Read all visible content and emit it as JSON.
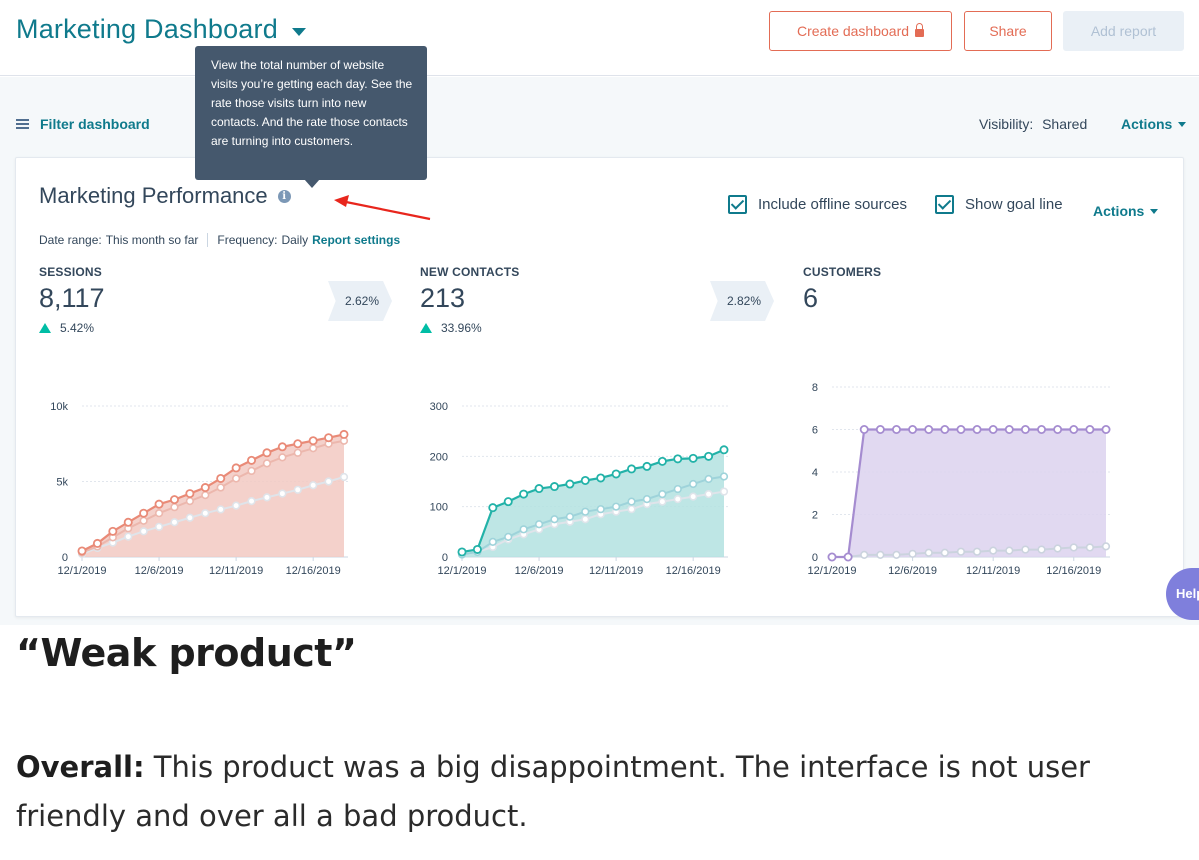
{
  "header": {
    "title": "Marketing Dashboard",
    "buttons": {
      "create": "Create dashboard",
      "share": "Share",
      "add_report": "Add report"
    }
  },
  "toolbar": {
    "filter_label": "Filter dashboard",
    "visibility_label": "Visibility:",
    "visibility_value": "Shared",
    "actions_label": "Actions"
  },
  "tooltip": {
    "text": "View the total number of website visits you’re getting each day. See the rate those visits turn into new contacts. And the rate those contacts are turning into customers."
  },
  "report": {
    "title": "Marketing Performance",
    "date_range_label": "Date range:",
    "date_range_value": "This month so far",
    "frequency_label": "Frequency:",
    "frequency_value": "Daily",
    "settings_link": "Report settings",
    "include_offline": "Include offline sources",
    "show_goal": "Show goal line",
    "actions_label": "Actions",
    "metrics": [
      {
        "label": "SESSIONS",
        "value": "8,117",
        "change": "5.42%"
      },
      {
        "label": "NEW CONTACTS",
        "value": "213",
        "change": "33.96%"
      },
      {
        "label": "CUSTOMERS",
        "value": "6",
        "change": ""
      }
    ],
    "rates": [
      "2.62%",
      "2.82%"
    ]
  },
  "colors": {
    "teal": "#0f7a8c",
    "coral": "#e36c55",
    "sessions_line": "#e98a77",
    "sessions_fill": "#f2c9c2",
    "contacts_line": "#22b2a8",
    "contacts_fill": "#b3e2e0",
    "customers_line": "#a58cd0",
    "customers_fill": "#dcd2ef",
    "goal_line": "#cbd3de"
  },
  "chart_data": [
    {
      "type": "area",
      "title": "",
      "x": [
        "12/1/2019",
        "12/2/2019",
        "12/3/2019",
        "12/4/2019",
        "12/5/2019",
        "12/6/2019",
        "12/7/2019",
        "12/8/2019",
        "12/9/2019",
        "12/10/2019",
        "12/11/2019",
        "12/12/2019",
        "12/13/2019",
        "12/14/2019",
        "12/15/2019",
        "12/16/2019",
        "12/17/2019",
        "12/18/2019"
      ],
      "x_ticks": [
        "12/1/2019",
        "12/6/2019",
        "12/11/2019",
        "12/16/2019"
      ],
      "y_ticks": [
        "0",
        "5k",
        "10k"
      ],
      "ylim": [
        0,
        10000
      ],
      "series": [
        {
          "values": [
            400,
            900,
            1700,
            2300,
            2900,
            3500,
            3800,
            4200,
            4600,
            5200,
            5900,
            6400,
            6900,
            7300,
            7500,
            7700,
            7900,
            8117
          ]
        },
        {
          "values": [
            300,
            700,
            1300,
            1900,
            2400,
            2900,
            3300,
            3700,
            4100,
            4600,
            5200,
            5700,
            6200,
            6600,
            6900,
            7200,
            7500,
            7700
          ]
        },
        {
          "values": [
            200,
            600,
            950,
            1350,
            1700,
            2000,
            2300,
            2600,
            2900,
            3150,
            3400,
            3700,
            3950,
            4200,
            4450,
            4750,
            5000,
            5300
          ]
        }
      ]
    },
    {
      "type": "area",
      "title": "",
      "x": [
        "12/1/2019",
        "12/2/2019",
        "12/3/2019",
        "12/4/2019",
        "12/5/2019",
        "12/6/2019",
        "12/7/2019",
        "12/8/2019",
        "12/9/2019",
        "12/10/2019",
        "12/11/2019",
        "12/12/2019",
        "12/13/2019",
        "12/14/2019",
        "12/15/2019",
        "12/16/2019",
        "12/17/2019",
        "12/18/2019"
      ],
      "x_ticks": [
        "12/1/2019",
        "12/6/2019",
        "12/11/2019",
        "12/16/2019"
      ],
      "y_ticks": [
        "0",
        "100",
        "200",
        "300"
      ],
      "ylim": [
        0,
        300
      ],
      "series": [
        {
          "values": [
            10,
            15,
            98,
            110,
            125,
            136,
            140,
            145,
            152,
            157,
            165,
            175,
            180,
            190,
            195,
            196,
            200,
            213
          ]
        },
        {
          "values": [
            5,
            10,
            30,
            40,
            55,
            65,
            75,
            80,
            90,
            95,
            100,
            110,
            115,
            125,
            135,
            145,
            155,
            160
          ]
        },
        {
          "values": [
            5,
            10,
            20,
            35,
            45,
            55,
            65,
            70,
            75,
            85,
            90,
            95,
            105,
            110,
            115,
            120,
            125,
            130
          ]
        }
      ]
    },
    {
      "type": "area",
      "title": "",
      "x": [
        "12/1/2019",
        "12/2/2019",
        "12/3/2019",
        "12/4/2019",
        "12/5/2019",
        "12/6/2019",
        "12/7/2019",
        "12/8/2019",
        "12/9/2019",
        "12/10/2019",
        "12/11/2019",
        "12/12/2019",
        "12/13/2019",
        "12/14/2019",
        "12/15/2019",
        "12/16/2019",
        "12/17/2019",
        "12/18/2019"
      ],
      "x_ticks": [
        "12/1/2019",
        "12/6/2019",
        "12/11/2019",
        "12/16/2019"
      ],
      "y_ticks": [
        "0",
        "2",
        "4",
        "6",
        "8"
      ],
      "ylim": [
        0,
        8
      ],
      "series": [
        {
          "values": [
            0,
            0,
            6,
            6,
            6,
            6,
            6,
            6,
            6,
            6,
            6,
            6,
            6,
            6,
            6,
            6,
            6,
            6
          ]
        },
        {
          "values": [
            0,
            0,
            0.1,
            0.1,
            0.1,
            0.15,
            0.2,
            0.2,
            0.25,
            0.25,
            0.3,
            0.3,
            0.35,
            0.35,
            0.4,
            0.45,
            0.45,
            0.5
          ]
        }
      ]
    }
  ],
  "help": {
    "label": "Help"
  },
  "review": {
    "title": "“Weak product”",
    "overall_label": "Overall:",
    "overall_text": "This product was a big disappointment. The interface is not user friendly and over all a bad product."
  }
}
